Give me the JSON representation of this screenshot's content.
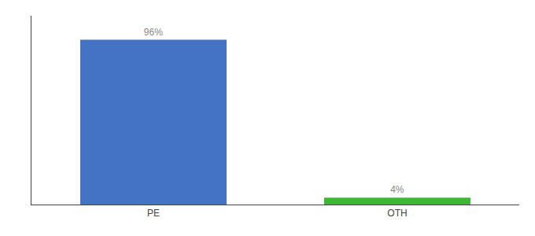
{
  "chart_data": {
    "type": "bar",
    "categories": [
      "PE",
      "OTH"
    ],
    "values": [
      96,
      4
    ],
    "value_labels": [
      "96%",
      "4%"
    ],
    "data_labels": true,
    "colors": [
      "#4472c4",
      "#3cb832"
    ],
    "ylim": [
      0,
      110
    ],
    "grid": false,
    "tick_labels": "x"
  }
}
